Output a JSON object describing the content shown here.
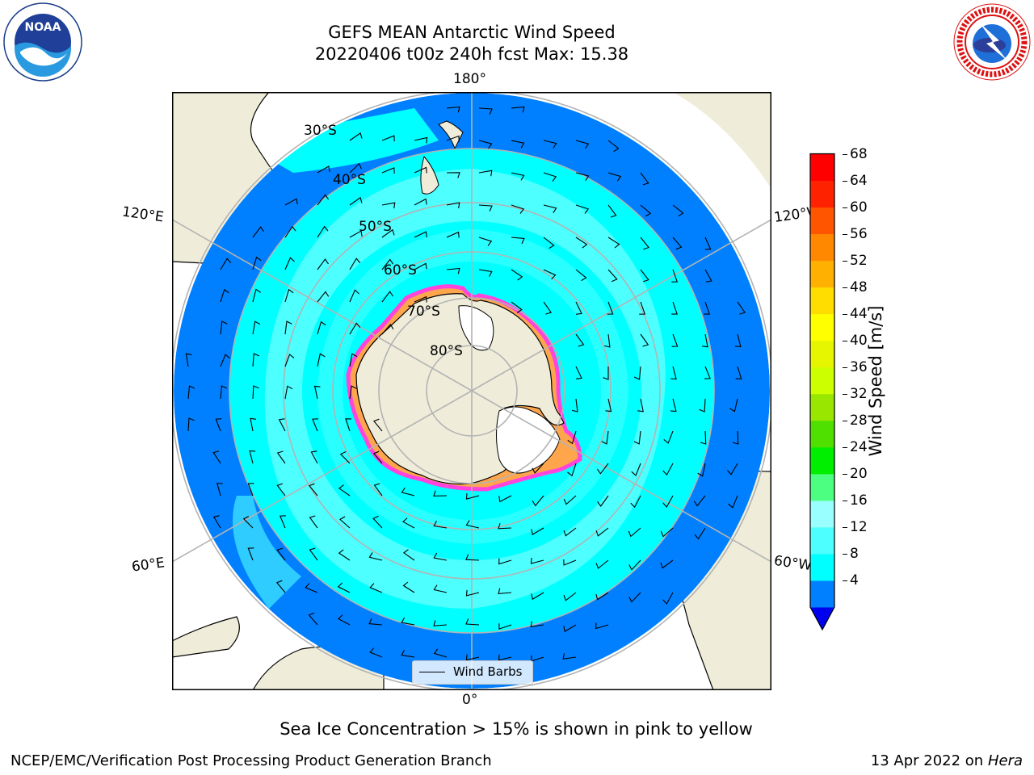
{
  "title": {
    "line1": "GEFS MEAN Antarctic Wind Speed",
    "line2": "20220406 t00z 240h fcst   Max: 15.38"
  },
  "logos": {
    "left": {
      "name": "NOAA",
      "ring_text": "NATIONAL OCEANIC AND ATMOSPHERIC ADMINISTRATION · U.S. DEPARTMENT OF COMMERCE"
    },
    "right": {
      "name": "NATIONAL WEATHER SERVICE"
    }
  },
  "map": {
    "projection": "south-polar-stereographic",
    "longitude_labels": {
      "top": "180°",
      "bottom": "0°",
      "left_upper": "120°E",
      "right_upper": "120°W",
      "left_lower": "60°E",
      "right_lower": "60°W"
    },
    "latitude_labels": [
      "30°S",
      "40°S",
      "50°S",
      "60°S",
      "70°S",
      "80°S"
    ],
    "legend_label": "Wind Barbs",
    "colors": {
      "land": "#efedda",
      "ice_sheet": "#ffffff",
      "sea_ice_edge": "#ff44dd",
      "sea_ice_inner": "#ffa64d",
      "grid": "#b3b3b3"
    }
  },
  "colorbar": {
    "label": "Wind Speed [m/s]",
    "ticks": [
      "68",
      "64",
      "60",
      "56",
      "52",
      "48",
      "44",
      "40",
      "36",
      "32",
      "28",
      "24",
      "20",
      "16",
      "12",
      "8",
      "4"
    ],
    "colors": [
      "#0000ee",
      "#0080ff",
      "#00ffff",
      "#4dffff",
      "#99ffff",
      "#4dff80",
      "#00ee00",
      "#50e000",
      "#99e600",
      "#ccff00",
      "#e6f500",
      "#ffff00",
      "#ffdd00",
      "#ffb000",
      "#ff8800",
      "#ff5500",
      "#ff2200",
      "#ff0000"
    ],
    "extend": "min"
  },
  "annotation": "Sea Ice Concentration > 15% is shown in pink to yellow",
  "footer": {
    "left": "NCEP/EMC/Verification Post Processing Product Generation Branch",
    "date": "13 Apr 2022 on ",
    "host": "Hera"
  }
}
